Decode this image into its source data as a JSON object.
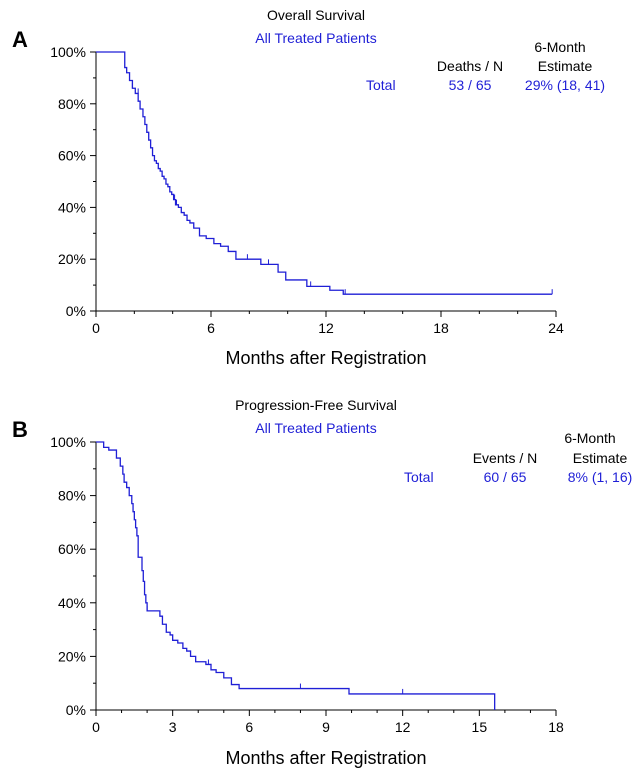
{
  "colors": {
    "curve": "#1f1fd6",
    "axis": "#000000",
    "text": "#000000",
    "accent_text": "#1f1fd6"
  },
  "chart_data": [
    {
      "type": "line",
      "panel_label": "A",
      "title": "Overall Survival",
      "subtitle": "All Treated Patients",
      "xlabel": "Months after Registration",
      "ylabel": "",
      "xlim": [
        0,
        24
      ],
      "ylim": [
        0,
        100
      ],
      "x_ticks": [
        0,
        6,
        12,
        18,
        24
      ],
      "x_tick_labels": [
        "0",
        "6",
        "12",
        "18",
        "24"
      ],
      "y_ticks": [
        0,
        20,
        40,
        60,
        80,
        100
      ],
      "y_tick_labels": [
        "0%",
        "20%",
        "40%",
        "60%",
        "80%",
        "100%"
      ],
      "grid": false,
      "table": {
        "header_top": "6-Month",
        "col1_header": "Deaths / N",
        "col2_header": "Estimate",
        "row_label": "Total",
        "col1_value": "53 / 65",
        "col2_value": "29%  (18, 41)"
      },
      "series": [
        {
          "x": [
            0,
            1.4,
            1.5,
            1.6,
            1.75,
            1.9,
            2.05,
            2.2,
            2.3,
            2.45,
            2.55,
            2.65,
            2.75,
            2.85,
            2.95,
            3.05,
            3.15,
            3.25,
            3.35,
            3.45,
            3.55,
            3.65,
            3.75,
            3.85,
            3.95,
            4.05,
            4.15,
            4.3,
            4.45,
            4.6,
            4.75,
            4.9,
            5.1,
            5.4,
            5.75,
            6.15,
            6.5,
            6.9,
            7.3,
            8.6,
            9.5,
            9.9,
            11.0,
            12.2,
            12.9,
            23.8
          ],
          "y": [
            100,
            100,
            94,
            92,
            89,
            86,
            84,
            81,
            78,
            75,
            72,
            69,
            66,
            63,
            60,
            58,
            57,
            55,
            54,
            52,
            51,
            49,
            48,
            46,
            45,
            43,
            41,
            40,
            38,
            37,
            35,
            34,
            32,
            29,
            28,
            26,
            25,
            23,
            20,
            18,
            15,
            12,
            9.5,
            8,
            6.5,
            6.5
          ],
          "censor_x": [
            1.9,
            2.2,
            4.1,
            4.2,
            7.9,
            9.0,
            11.2,
            13.0,
            23.8
          ],
          "censor_y": [
            86,
            84,
            43,
            41,
            20,
            18,
            9.5,
            6.5,
            6.5
          ]
        }
      ]
    },
    {
      "type": "line",
      "panel_label": "B",
      "title": "Progression-Free Survival",
      "subtitle": "All Treated Patients",
      "xlabel": "Months after Registration",
      "ylabel": "",
      "xlim": [
        0,
        18
      ],
      "ylim": [
        0,
        100
      ],
      "x_ticks": [
        0,
        3,
        6,
        9,
        12,
        15,
        18
      ],
      "x_tick_labels": [
        "0",
        "3",
        "6",
        "9",
        "12",
        "15",
        "18"
      ],
      "y_ticks": [
        0,
        20,
        40,
        60,
        80,
        100
      ],
      "y_tick_labels": [
        "0%",
        "20%",
        "40%",
        "60%",
        "80%",
        "100%"
      ],
      "grid": false,
      "table": {
        "header_top": "6-Month",
        "col1_header": "Events / N",
        "col2_header": "Estimate",
        "row_label": "Total",
        "col1_value": "60 / 65",
        "col2_value": "8%  (1, 16)"
      },
      "series": [
        {
          "x": [
            0,
            0.3,
            0.5,
            0.8,
            0.95,
            1.05,
            1.1,
            1.2,
            1.3,
            1.4,
            1.45,
            1.5,
            1.55,
            1.6,
            1.65,
            1.7,
            1.8,
            1.85,
            1.9,
            1.95,
            2.0,
            2.1,
            2.2,
            2.5,
            2.6,
            2.75,
            2.9,
            3.0,
            3.2,
            3.4,
            3.55,
            3.7,
            3.9,
            4.3,
            4.5,
            4.7,
            5.0,
            5.3,
            5.6,
            9.9,
            15.6
          ],
          "y": [
            100,
            98,
            97,
            94,
            91,
            88,
            85,
            83,
            80,
            77,
            74,
            71,
            68,
            65,
            57,
            57,
            52,
            48,
            43,
            40,
            37,
            37,
            37,
            35,
            32,
            29,
            28,
            26,
            25,
            23,
            22,
            20,
            18,
            17,
            15,
            14,
            12,
            9.5,
            8,
            6,
            0
          ],
          "censor_x": [
            2.0,
            4.4,
            8.0,
            12.0
          ],
          "censor_y": [
            37,
            17,
            8,
            6
          ]
        }
      ]
    }
  ]
}
